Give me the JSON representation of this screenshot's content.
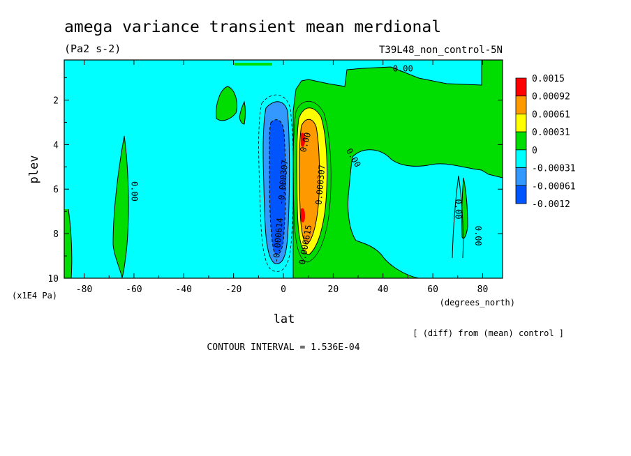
{
  "chart_data": {
    "type": "heatmap",
    "title": "amega variance transient mean merdional",
    "units": "(Pa2 s-2)",
    "run_label": "T39L48_non_control-5N",
    "xlabel": "lat",
    "xunits": "(degrees_north)",
    "ylabel": "plev",
    "yunits": "(x1E4 Pa)",
    "xlim": [
      -88,
      88
    ],
    "ylim": [
      0.2,
      10
    ],
    "y_reversed": true,
    "x_ticks": [
      -80,
      -60,
      -40,
      -20,
      0,
      20,
      40,
      60,
      80
    ],
    "y_ticks": [
      2,
      4,
      6,
      8,
      10
    ],
    "x_tick_labels": [
      "-80",
      "-60",
      "-40",
      "-20",
      "0",
      "20",
      "40",
      "60",
      "80"
    ],
    "y_tick_labels": [
      "2",
      "4",
      "6",
      "8",
      "10"
    ],
    "colorbar": {
      "labels": [
        "0.0015",
        "0.00092",
        "0.00061",
        "0.00031",
        "0",
        "-0.00031",
        "-0.00061",
        "-0.0012"
      ],
      "colors": [
        "#ff0000",
        "#ff9900",
        "#ffff00",
        "#00dd00",
        "#00ffff",
        "#3399ff",
        "#0055ff"
      ]
    },
    "contour_labels": [
      {
        "text": "0.00",
        "lat": 48,
        "plev": 0.6,
        "rotate": 0
      },
      {
        "text": "0.00",
        "lat": -60,
        "plev": 6.1,
        "rotate": 90
      },
      {
        "text": "0.00",
        "lat": 28,
        "plev": 4.6,
        "rotate": 60
      },
      {
        "text": "0.00",
        "lat": 70,
        "plev": 6.9,
        "rotate": 90
      },
      {
        "text": "0.00",
        "lat": 78,
        "plev": 8.1,
        "rotate": 90
      },
      {
        "text": "0.00",
        "lat": 9,
        "plev": 3.9,
        "rotate": -75
      },
      {
        "text": "0.000307",
        "lat": 15,
        "plev": 5.8,
        "rotate": -85
      },
      {
        "text": "0.000615",
        "lat": 9,
        "plev": 8.5,
        "rotate": -80
      },
      {
        "text": "-0.000614",
        "lat": -2,
        "plev": 8.3,
        "rotate": -85
      },
      {
        "text": "-0.000307",
        "lat": 0,
        "plev": 5.7,
        "rotate": -85
      }
    ],
    "footer_left": "CONTOUR INTERVAL = 1.536E-04",
    "footer_right": "[ (diff) from (mean) control ]"
  }
}
